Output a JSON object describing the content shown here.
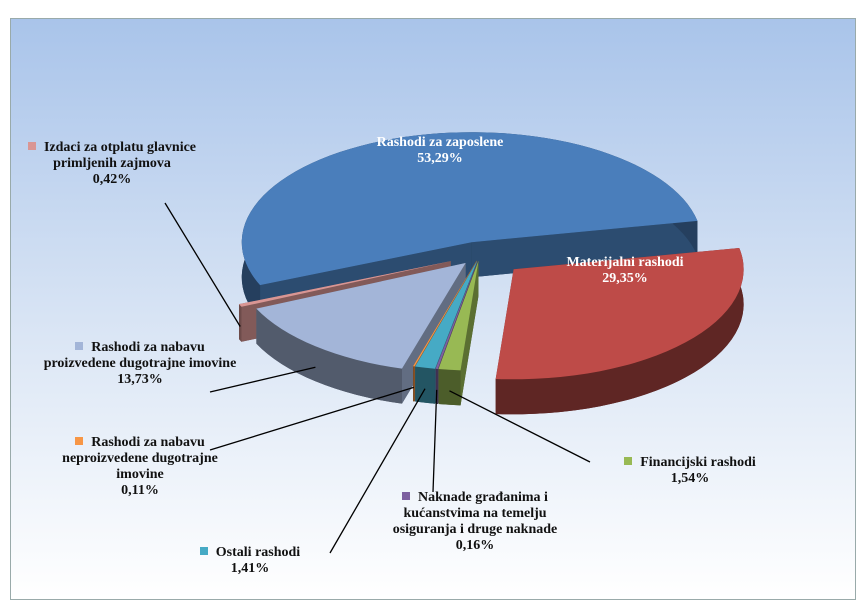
{
  "chart_data": {
    "type": "pie",
    "categories": [
      "Rashodi za zaposlene",
      "Materijalni rashodi",
      "Financijski rashodi",
      "Naknade građanima i kućanstvima na temelju osiguranja i druge naknade",
      "Ostali rashodi",
      "Rashodi za nabavu neproizvedene dugotrajne imovine",
      "Rashodi za nabavu proizvedene dugotrajne imovine",
      "Izdaci za otplatu glavnice primljenih zajmova"
    ],
    "values": [
      53.29,
      29.35,
      1.54,
      0.16,
      1.41,
      0.11,
      13.73,
      0.42
    ],
    "value_labels": [
      "53,29%",
      "29,35%",
      "1,54%",
      "0,16%",
      "1,41%",
      "0,11%",
      "13,73%",
      "0,42%"
    ],
    "colors": [
      "#4a7ebb",
      "#be4b48",
      "#98b954",
      "#7d60a0",
      "#46aac5",
      "#f79646",
      "#a3b5d8",
      "#d99694"
    ]
  }
}
